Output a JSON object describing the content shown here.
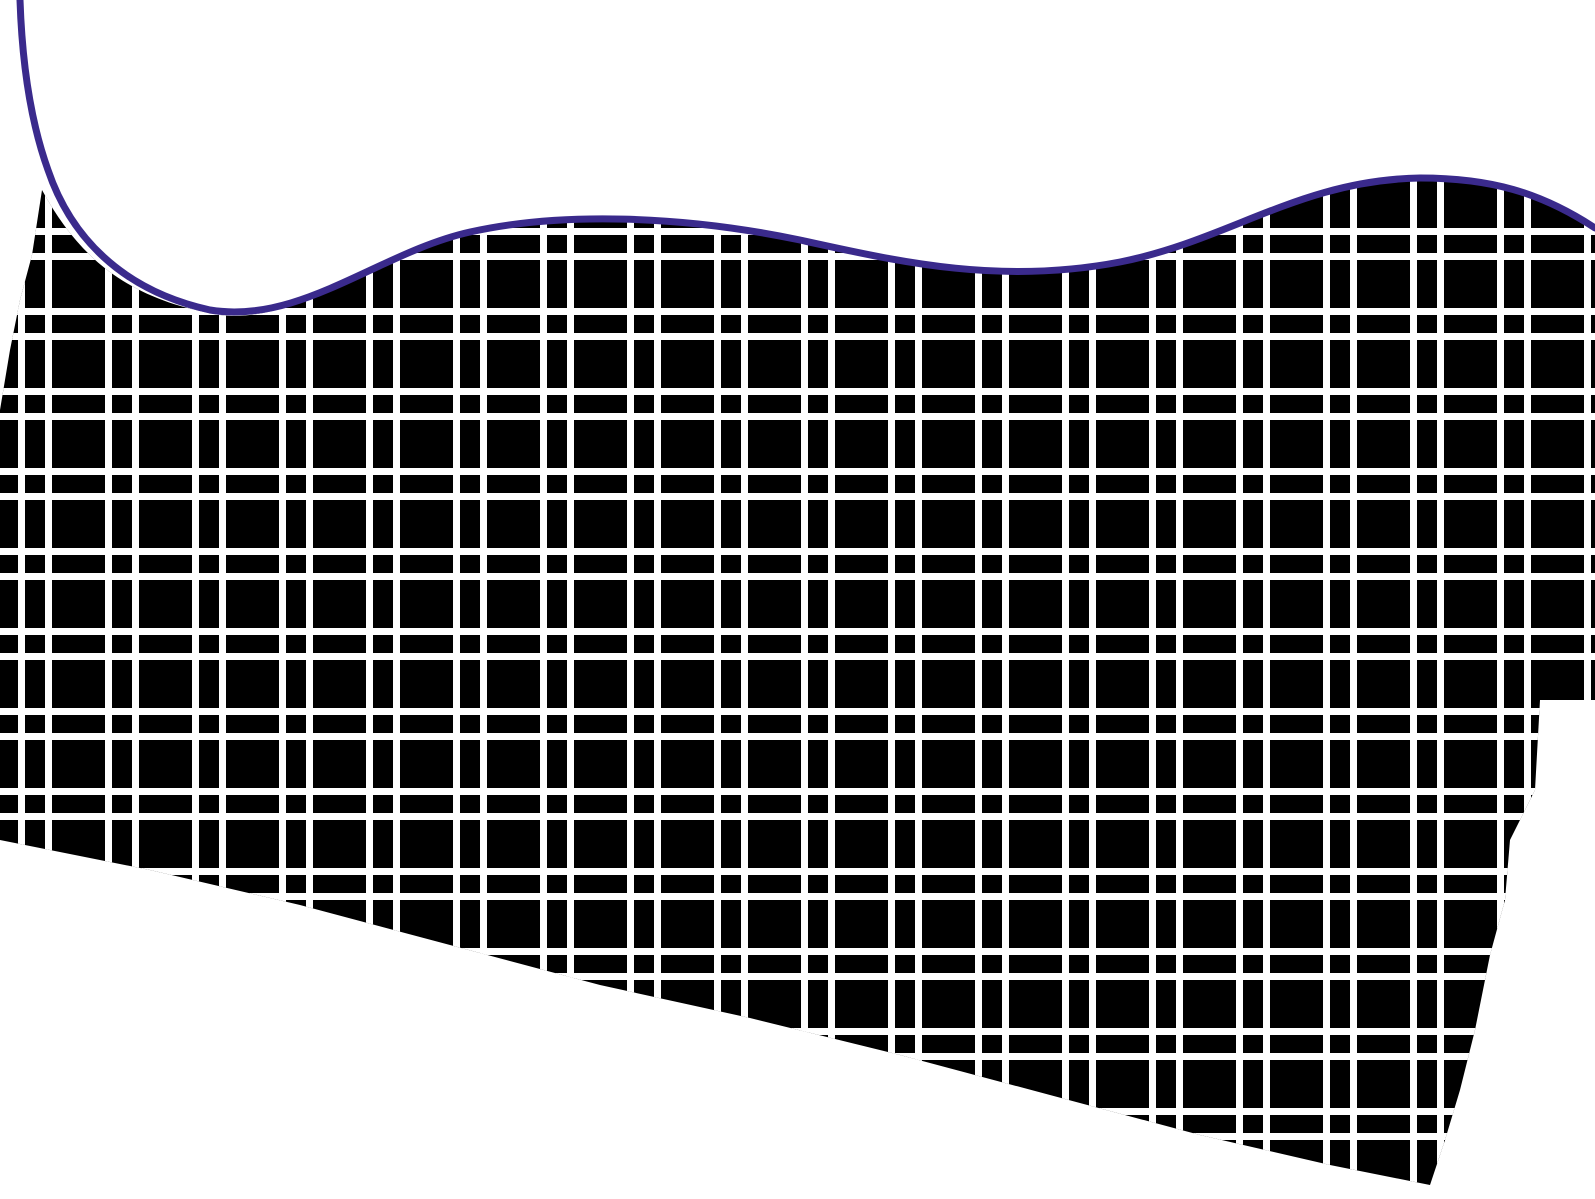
{
  "artwork": {
    "icon": "wavy-checkered-banner-icon",
    "colors": {
      "background": "#ffffff",
      "fill": "#000000",
      "grid_lines": "#ffffff",
      "wave_stroke": "#3a2a8c"
    }
  }
}
